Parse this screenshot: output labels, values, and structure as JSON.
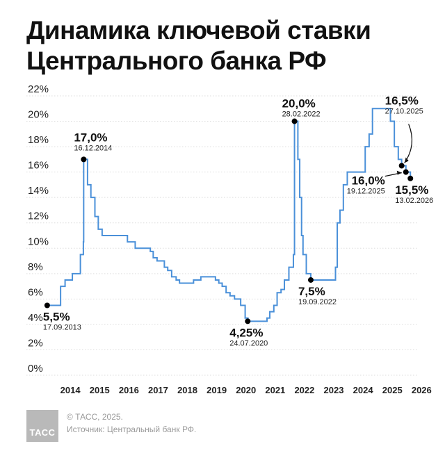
{
  "title": {
    "line1": "Динамика ключевой ставки",
    "line2": "Центрального банка РФ"
  },
  "footer": {
    "logo": "ТАСС",
    "copyright": "© ТАСС, 2025.",
    "source": "Источник: Центральный банк РФ."
  },
  "colors": {
    "line": "#4a90d9",
    "grid": "#dddddd",
    "text": "#111111",
    "logo_bg": "#b9b9b9"
  },
  "chart_data": {
    "type": "line",
    "title": "Динамика ключевой ставки Центрального банка РФ",
    "xlabel": "",
    "ylabel": "",
    "x_range": [
      2013.0,
      2026.35
    ],
    "ylim": [
      0,
      22
    ],
    "grid": true,
    "y_ticks": [
      "0%",
      "2%",
      "4%",
      "6%",
      "8%",
      "10%",
      "12%",
      "14%",
      "16%",
      "18%",
      "20%",
      "22%"
    ],
    "x_ticks": [
      "2014",
      "2015",
      "2016",
      "2017",
      "2018",
      "2019",
      "2020",
      "2021",
      "2022",
      "2023",
      "2024",
      "2025",
      "2026"
    ],
    "series": [
      {
        "points": [
          [
            "2013-09-17",
            5.5
          ],
          [
            "2014-03-03",
            7.0
          ],
          [
            "2014-04-28",
            7.5
          ],
          [
            "2014-07-28",
            8.0
          ],
          [
            "2014-11-05",
            9.5
          ],
          [
            "2014-12-12",
            10.5
          ],
          [
            "2014-12-16",
            17.0
          ],
          [
            "2015-02-02",
            15.0
          ],
          [
            "2015-03-16",
            14.0
          ],
          [
            "2015-05-05",
            12.5
          ],
          [
            "2015-06-16",
            11.5
          ],
          [
            "2015-08-03",
            11.0
          ],
          [
            "2016-06-14",
            10.5
          ],
          [
            "2016-09-19",
            10.0
          ],
          [
            "2017-03-27",
            9.75
          ],
          [
            "2017-05-02",
            9.25
          ],
          [
            "2017-06-19",
            9.0
          ],
          [
            "2017-09-18",
            8.5
          ],
          [
            "2017-10-30",
            8.25
          ],
          [
            "2017-12-18",
            7.75
          ],
          [
            "2018-02-12",
            7.5
          ],
          [
            "2018-03-26",
            7.25
          ],
          [
            "2018-09-17",
            7.5
          ],
          [
            "2018-12-17",
            7.75
          ],
          [
            "2019-06-17",
            7.5
          ],
          [
            "2019-07-29",
            7.25
          ],
          [
            "2019-09-09",
            7.0
          ],
          [
            "2019-10-28",
            6.5
          ],
          [
            "2019-12-16",
            6.25
          ],
          [
            "2020-02-10",
            6.0
          ],
          [
            "2020-04-27",
            5.5
          ],
          [
            "2020-06-22",
            4.5
          ],
          [
            "2020-07-27",
            4.25
          ],
          [
            "2021-03-22",
            4.5
          ],
          [
            "2021-04-26",
            5.0
          ],
          [
            "2021-06-15",
            5.5
          ],
          [
            "2021-07-26",
            6.5
          ],
          [
            "2021-09-13",
            6.75
          ],
          [
            "2021-10-25",
            7.5
          ],
          [
            "2021-12-20",
            8.5
          ],
          [
            "2022-02-14",
            9.5
          ],
          [
            "2022-02-28",
            20.0
          ],
          [
            "2022-04-11",
            17.0
          ],
          [
            "2022-05-04",
            14.0
          ],
          [
            "2022-05-27",
            11.0
          ],
          [
            "2022-06-14",
            9.5
          ],
          [
            "2022-07-25",
            8.0
          ],
          [
            "2022-09-19",
            7.5
          ],
          [
            "2023-07-24",
            8.5
          ],
          [
            "2023-08-15",
            12.0
          ],
          [
            "2023-09-18",
            13.0
          ],
          [
            "2023-10-30",
            15.0
          ],
          [
            "2023-12-18",
            16.0
          ],
          [
            "2024-07-29",
            18.0
          ],
          [
            "2024-09-16",
            19.0
          ],
          [
            "2024-10-28",
            21.0
          ],
          [
            "2025-06-09",
            20.0
          ],
          [
            "2025-07-28",
            18.0
          ],
          [
            "2025-09-15",
            17.0
          ],
          [
            "2025-10-27",
            16.5
          ],
          [
            "2025-12-19",
            16.0
          ],
          [
            "2026-02-13",
            15.5
          ]
        ]
      }
    ],
    "annotations": [
      {
        "value": "5,5%",
        "date": "17.09.2013"
      },
      {
        "value": "17,0%",
        "date": "16.12.2014"
      },
      {
        "value": "4,25%",
        "date": "24.07.2020"
      },
      {
        "value": "20,0%",
        "date": "28.02.2022"
      },
      {
        "value": "7,5%",
        "date": "19.09.2022"
      },
      {
        "value": "16,5%",
        "date": "27.10.2025"
      },
      {
        "value": "16,0%",
        "date": "19.12.2025"
      },
      {
        "value": "15,5%",
        "date": "13.02.2026"
      }
    ]
  }
}
